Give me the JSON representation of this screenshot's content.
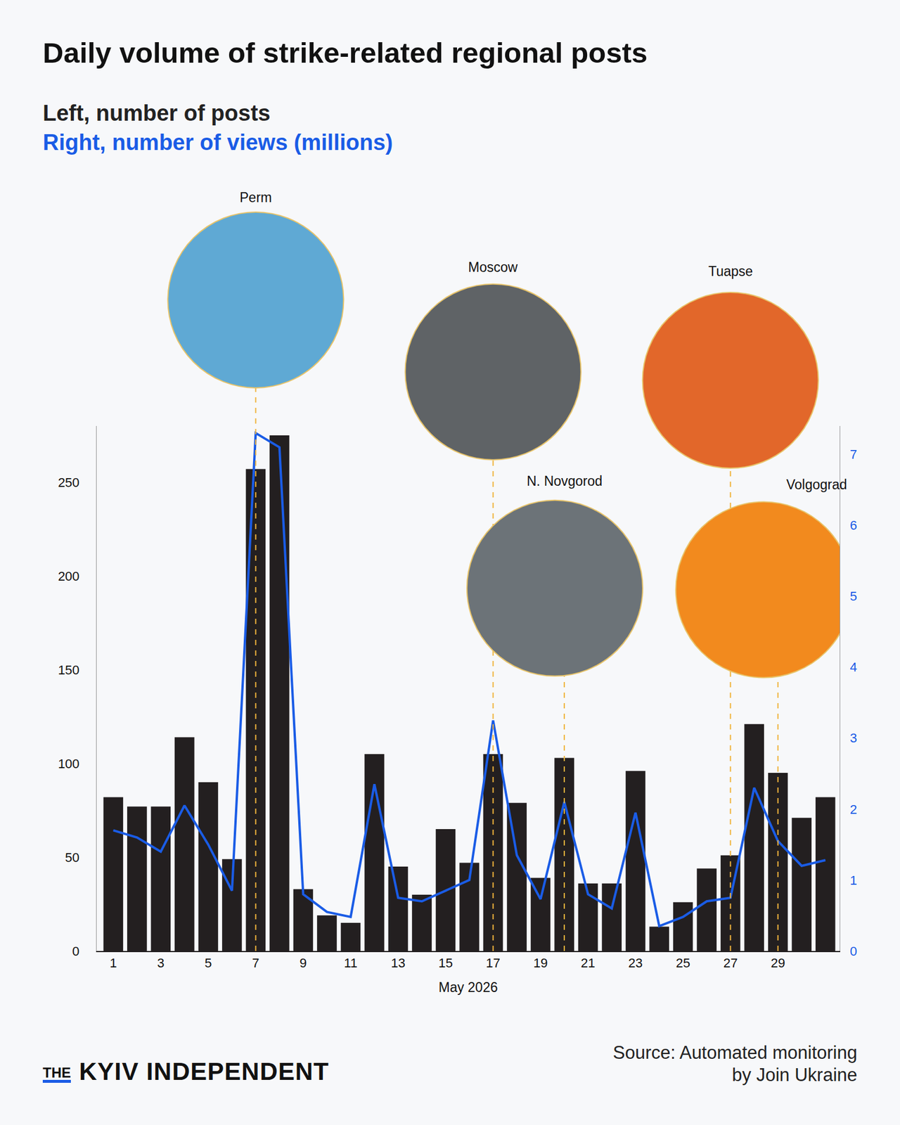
{
  "chart_data": {
    "type": "bar",
    "title": "Daily volume of strike-related regional posts",
    "ylabel": "Left, number of posts",
    "y2label": "Right, number of views (millions)",
    "xlabel": "May 2026",
    "x": [
      1,
      2,
      3,
      4,
      5,
      6,
      7,
      8,
      9,
      10,
      11,
      12,
      13,
      14,
      15,
      16,
      17,
      18,
      19,
      20,
      21,
      22,
      23,
      24,
      25,
      26,
      27,
      28,
      29,
      30,
      31
    ],
    "xlim": [
      0.3,
      31.6
    ],
    "xticks": [
      1,
      3,
      5,
      7,
      9,
      11,
      13,
      15,
      17,
      19,
      21,
      23,
      25,
      27,
      29
    ],
    "ylim": [
      0,
      280
    ],
    "yticks": [
      0,
      50,
      100,
      150,
      200,
      250
    ],
    "y2lim": [
      0,
      7.4
    ],
    "y2ticks": [
      0,
      1,
      2,
      3,
      4,
      5,
      6,
      7
    ],
    "grid": false,
    "series": [
      {
        "type": "bar",
        "color": "#231f20",
        "values": [
          82,
          77,
          77,
          114,
          90,
          49,
          257,
          275,
          33,
          19,
          15,
          105,
          45,
          30,
          65,
          47,
          105,
          79,
          39,
          103,
          36,
          36,
          96,
          13,
          26,
          44,
          51,
          121,
          95,
          71,
          82
        ]
      },
      {
        "type": "line",
        "axis": "y2",
        "color": "#1a5ce6",
        "values": [
          1.7,
          1.6,
          1.4,
          2.05,
          1.5,
          0.85,
          7.3,
          7.1,
          0.8,
          0.55,
          0.48,
          2.35,
          0.75,
          0.7,
          0.85,
          1.0,
          3.25,
          1.35,
          0.73,
          2.1,
          0.8,
          0.6,
          1.95,
          0.35,
          0.48,
          0.7,
          0.75,
          2.3,
          1.55,
          1.2,
          1.28
        ]
      }
    ],
    "annotations": [
      {
        "text": "Perm",
        "x": 7
      },
      {
        "text": "Moscow",
        "x": 17
      },
      {
        "text": "N. Novgorod",
        "x": 20
      },
      {
        "text": "Tuapse",
        "x": 27
      },
      {
        "text": "Volgograd",
        "x": 29
      }
    ],
    "publisher": [
      "THE",
      "KYIV INDEPENDENT"
    ],
    "source": [
      "Source: Automated monitoring",
      "by Join Ukraine"
    ]
  }
}
